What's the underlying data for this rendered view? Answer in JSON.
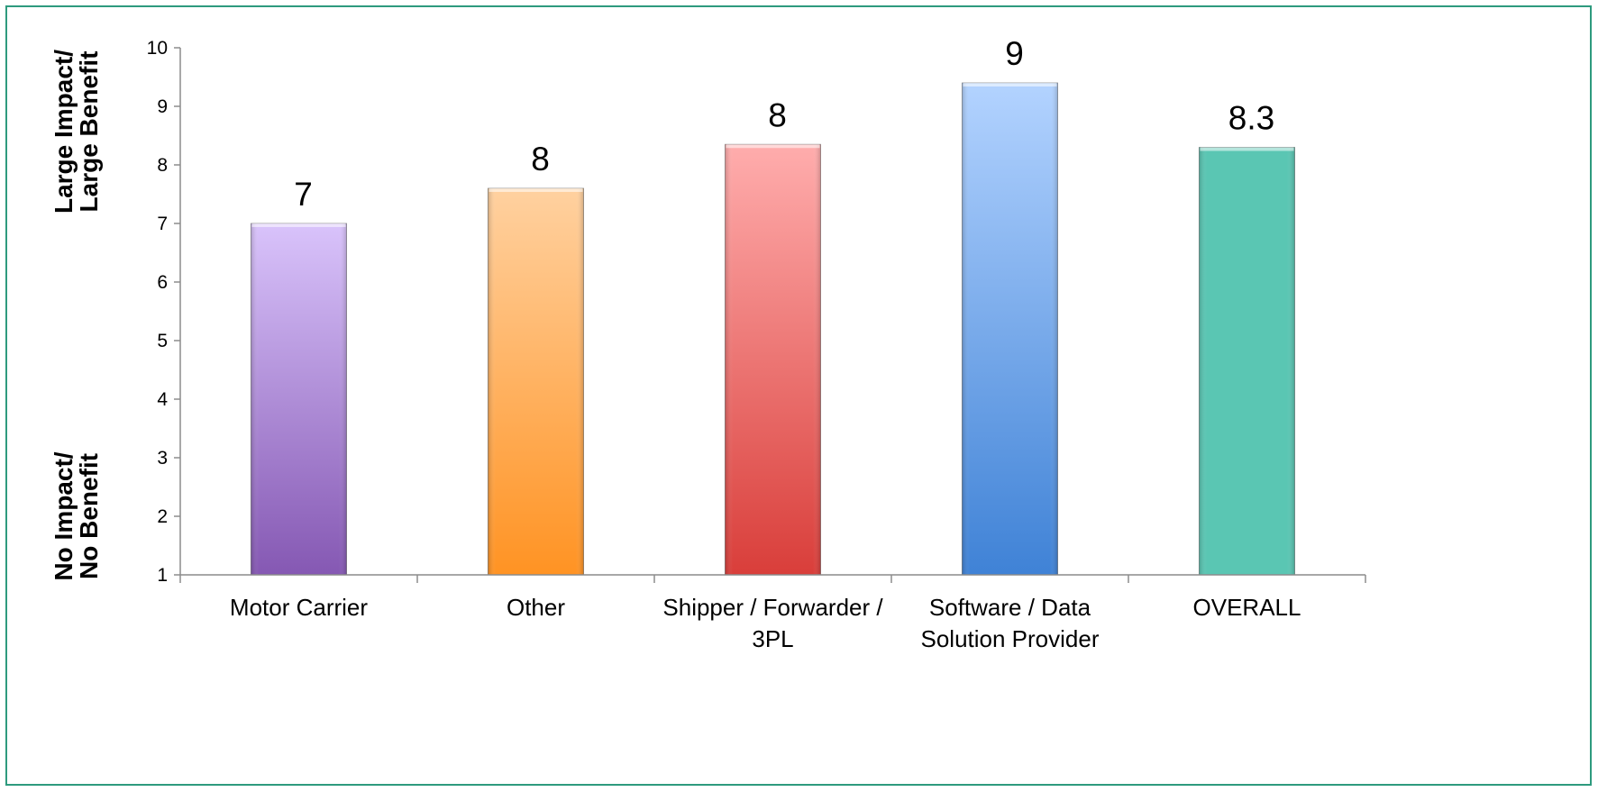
{
  "chart_data": {
    "type": "bar",
    "title": "",
    "xlabel": "",
    "ylabel": "",
    "categories": [
      [
        "Motor Carrier"
      ],
      [
        "Other"
      ],
      [
        "Shipper / Forwarder /",
        "3PL"
      ],
      [
        "Software / Data",
        "Solution Provider"
      ],
      [
        "OVERALL"
      ]
    ],
    "values": [
      7.0,
      7.6,
      8.35,
      9.4,
      8.3
    ],
    "data_labels": [
      "7",
      "8",
      "8",
      "9",
      "8.3"
    ],
    "ylim": [
      1,
      10
    ],
    "yticks": [
      1,
      2,
      3,
      4,
      5,
      6,
      7,
      8,
      9,
      10
    ],
    "grid": false,
    "legend": "none",
    "y_annotations": {
      "top": [
        "Large Impact/",
        "Large Benefit"
      ],
      "bottom": [
        "No Impact/",
        "No Benefit"
      ]
    },
    "bar_colors": [
      {
        "top": "#d9c3fb",
        "bottom": "#8558b3"
      },
      {
        "top": "#ffd1a0",
        "bottom": "#ff9323"
      },
      {
        "top": "#ffadad",
        "bottom": "#d93e3a"
      },
      {
        "top": "#b3d3ff",
        "bottom": "#3f82d6"
      },
      {
        "top": "#5ac6b3",
        "bottom": "#5ac6b3"
      }
    ],
    "frame_color": "#2e9a7e",
    "axis_color": "#8c8c8c"
  }
}
